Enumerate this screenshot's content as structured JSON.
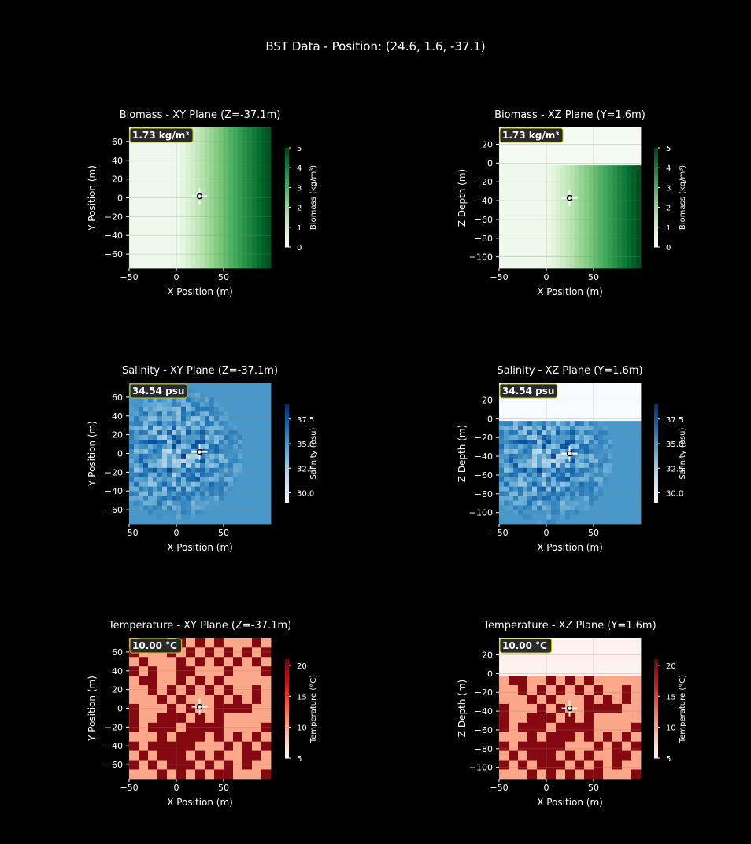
{
  "figure_title": "BST Data - Position: (24.6, 1.6, -37.1)",
  "marker": {
    "x": 24.6,
    "y": 1.6,
    "z": -37.1
  },
  "colors": {
    "background": "#000000",
    "annotation_bg": "#2a2a2a",
    "annotation_border": "#c8c800",
    "annotation_text": "#ffff00"
  },
  "chart_data": [
    {
      "type": "heatmap",
      "title": "Biomass - XY Plane (Z=-37.1m)",
      "xlabel": "X Position (m)",
      "ylabel": "Y Position (m)",
      "xlim": [
        -50,
        100
      ],
      "ylim": [
        -75,
        75
      ],
      "xticks": [
        -50,
        0,
        50
      ],
      "yticks": [
        -60,
        -40,
        -20,
        0,
        20,
        40,
        60
      ],
      "colormap": "Greens",
      "clim": [
        0,
        5
      ],
      "colorbar_label": "Biomass (kg/m³)",
      "colorbar_ticks": [
        0,
        1,
        2,
        3,
        4,
        5
      ],
      "pattern": "gradient_x",
      "base_value": 0.3,
      "ramp_start_x": 0,
      "max_value": 4.9,
      "annotation": "1.73 kg/m³",
      "marker": [
        24.6,
        1.6
      ],
      "grid": true
    },
    {
      "type": "heatmap",
      "title": "Biomass - XZ Plane (Y=1.6m)",
      "xlabel": "X Position (m)",
      "ylabel": "Z Depth (m)",
      "xlim": [
        -50,
        100
      ],
      "ylim": [
        -112,
        38
      ],
      "xticks": [
        -50,
        0,
        50
      ],
      "yticks": [
        -100,
        -80,
        -60,
        -40,
        -20,
        0,
        20
      ],
      "colormap": "Greens",
      "clim": [
        0,
        5
      ],
      "colorbar_label": "Biomass (kg/m³)",
      "colorbar_ticks": [
        0,
        1,
        2,
        3,
        4,
        5
      ],
      "pattern": "gradient_x",
      "base_value": 0.3,
      "ramp_start_x": 0,
      "max_value": 4.9,
      "water_surface_z": -4,
      "above_surface_value": 0.1,
      "annotation": "1.73 kg/m³",
      "marker": [
        24.6,
        -37.1
      ],
      "grid": true
    },
    {
      "type": "heatmap",
      "title": "Salinity - XY Plane (Z=-37.1m)",
      "xlabel": "X Position (m)",
      "ylabel": "Y Position (m)",
      "xlim": [
        -50,
        100
      ],
      "ylim": [
        -75,
        75
      ],
      "xticks": [
        -50,
        0,
        50
      ],
      "yticks": [
        -60,
        -40,
        -20,
        0,
        20,
        40,
        60
      ],
      "colormap": "Blues",
      "clim": [
        29,
        39
      ],
      "colorbar_label": "Salinity (psu)",
      "colorbar_ticks": [
        30.0,
        32.5,
        35.0,
        37.5
      ],
      "pattern": "radial_noise",
      "base_value": 35.0,
      "center": [
        0,
        0
      ],
      "radius": 70,
      "annotation": "34.54 psu",
      "marker": [
        24.6,
        1.6
      ],
      "grid": true
    },
    {
      "type": "heatmap",
      "title": "Salinity - XZ Plane (Y=1.6m)",
      "xlabel": "X Position (m)",
      "ylabel": "Z Depth (m)",
      "xlim": [
        -50,
        100
      ],
      "ylim": [
        -112,
        38
      ],
      "xticks": [
        -50,
        0,
        50
      ],
      "yticks": [
        -100,
        -80,
        -60,
        -40,
        -20,
        0,
        20
      ],
      "colormap": "Blues",
      "clim": [
        29,
        39
      ],
      "colorbar_label": "Salinity (psu)",
      "colorbar_ticks": [
        30.0,
        32.5,
        35.0,
        37.5
      ],
      "pattern": "radial_noise",
      "base_value": 35.0,
      "center": [
        0,
        -40
      ],
      "radius": 70,
      "water_surface_z": -4,
      "above_surface_value": 29.0,
      "annotation": "34.54 psu",
      "marker": [
        24.6,
        -37.1
      ],
      "grid": true
    },
    {
      "type": "heatmap",
      "title": "Temperature - XY Plane (Z=-37.1m)",
      "xlabel": "X Position (m)",
      "ylabel": "Y Position (m)",
      "xlim": [
        -50,
        100
      ],
      "ylim": [
        -75,
        75
      ],
      "xticks": [
        -50,
        0,
        50
      ],
      "yticks": [
        -60,
        -40,
        -20,
        0,
        20,
        40,
        60
      ],
      "colormap": "Reds",
      "clim": [
        5,
        21
      ],
      "colorbar_label": "Temperature (°C)",
      "colorbar_ticks": [
        5,
        10,
        15,
        20
      ],
      "pattern": "checker",
      "low_value": 10,
      "high_value": 20,
      "annotation": "10.00 °C",
      "marker": [
        24.6,
        1.6
      ],
      "grid": true
    },
    {
      "type": "heatmap",
      "title": "Temperature - XZ Plane (Y=1.6m)",
      "xlabel": "X Position (m)",
      "ylabel": "Z Depth (m)",
      "xlim": [
        -50,
        100
      ],
      "ylim": [
        -112,
        38
      ],
      "xticks": [
        -50,
        0,
        50
      ],
      "yticks": [
        -100,
        -80,
        -60,
        -40,
        -20,
        0,
        20
      ],
      "colormap": "Reds",
      "clim": [
        5,
        21
      ],
      "colorbar_label": "Temperature (°C)",
      "colorbar_ticks": [
        5,
        10,
        15,
        20
      ],
      "pattern": "checker",
      "low_value": 10,
      "high_value": 20,
      "water_surface_z": -4,
      "above_surface_value": 5.3,
      "annotation": "10.00 °C",
      "marker": [
        24.6,
        -37.1
      ],
      "grid": true
    }
  ]
}
